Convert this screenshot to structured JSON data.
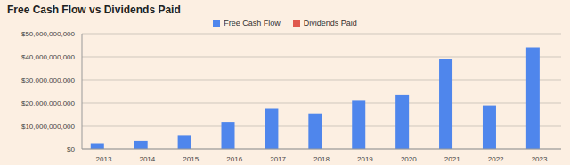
{
  "chart_data": {
    "type": "bar",
    "title": "Free Cash Flow vs Dividends Paid",
    "categories": [
      "2013",
      "2014",
      "2015",
      "2016",
      "2017",
      "2018",
      "2019",
      "2020",
      "2021",
      "2022",
      "2023"
    ],
    "series": [
      {
        "name": "Free Cash Flow",
        "color": "#4f86ec",
        "values": [
          2500000000,
          3500000000,
          6000000000,
          11500000000,
          17500000000,
          15500000000,
          21000000000,
          23500000000,
          39000000000,
          19000000000,
          44000000000
        ]
      },
      {
        "name": "Dividends Paid",
        "color": "#e0594e",
        "values": [
          0,
          0,
          0,
          0,
          0,
          0,
          0,
          0,
          0,
          0,
          0
        ]
      }
    ],
    "ylim": [
      0,
      50000000000
    ],
    "yticks": [
      {
        "value": 0,
        "label": "$0"
      },
      {
        "value": 10000000000,
        "label": "$10,000,000,000"
      },
      {
        "value": 20000000000,
        "label": "$20,000,000,000"
      },
      {
        "value": 30000000000,
        "label": "$30,000,000,000"
      },
      {
        "value": 40000000000,
        "label": "$40,000,000,000"
      },
      {
        "value": 50000000000,
        "label": "$50,000,000,000"
      }
    ],
    "grid": true,
    "legend": "top"
  }
}
